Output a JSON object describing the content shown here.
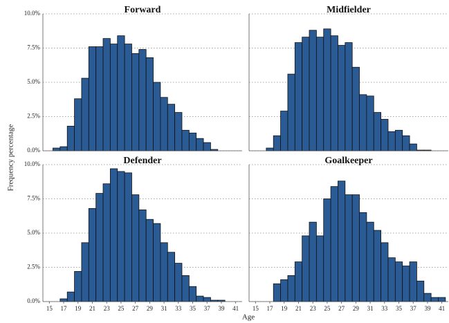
{
  "ylabel": "Frequency percentage",
  "xlabel": "Age",
  "chart_data": [
    {
      "type": "histogram",
      "title": "Forward",
      "color": "#2a5b94",
      "bins": [
        15.5,
        16.5,
        17.5,
        18.5,
        19.5,
        20.5,
        21.5,
        22.5,
        23.5,
        24.5,
        25.5,
        26.5,
        27.5,
        28.5,
        29.5,
        30.5,
        31.5,
        32.5,
        33.5,
        34.5,
        35.5,
        36.5,
        37.5,
        38.5,
        39.5,
        40.5,
        41.5
      ],
      "values": [
        0.2,
        0.3,
        1.8,
        3.8,
        5.3,
        7.6,
        7.6,
        8.2,
        7.8,
        8.4,
        7.8,
        7.1,
        7.4,
        6.8,
        5.0,
        3.9,
        3.4,
        2.8,
        1.5,
        1.3,
        0.9,
        0.6,
        0.1,
        0,
        0,
        0
      ],
      "xlim": [
        14.1,
        41.9
      ],
      "ylim": [
        0,
        10
      ],
      "yticks": [
        {
          "value": 0,
          "label": "0.0%"
        },
        {
          "value": 2.5,
          "label": "2.5%"
        },
        {
          "value": 5,
          "label": "5.0%"
        },
        {
          "value": 7.5,
          "label": "7.5%"
        },
        {
          "value": 10,
          "label": "10.0%"
        }
      ],
      "grid": true
    },
    {
      "type": "histogram",
      "title": "Midfielder",
      "color": "#2a5b94",
      "bins": [
        15.5,
        16.5,
        17.5,
        18.5,
        19.5,
        20.5,
        21.5,
        22.5,
        23.5,
        24.5,
        25.5,
        26.5,
        27.5,
        28.5,
        29.5,
        30.5,
        31.5,
        32.5,
        33.5,
        34.5,
        35.5,
        36.5,
        37.5,
        38.5,
        39.5,
        40.5,
        41.5
      ],
      "values": [
        0,
        0.2,
        1.1,
        2.9,
        5.6,
        7.9,
        8.3,
        8.8,
        8.3,
        8.9,
        8.4,
        7.7,
        7.9,
        6.1,
        4.1,
        4.0,
        2.8,
        2.3,
        1.4,
        1.5,
        1.1,
        0.5,
        0.05,
        0.05,
        0,
        0
      ],
      "xlim": [
        14.1,
        41.9
      ],
      "ylim": [
        0,
        10
      ],
      "yticks": [
        0,
        2.5,
        5,
        7.5,
        10
      ],
      "grid": true
    },
    {
      "type": "histogram",
      "title": "Defender",
      "color": "#2a5b94",
      "bins": [
        15.5,
        16.5,
        17.5,
        18.5,
        19.5,
        20.5,
        21.5,
        22.5,
        23.5,
        24.5,
        25.5,
        26.5,
        27.5,
        28.5,
        29.5,
        30.5,
        31.5,
        32.5,
        33.5,
        34.5,
        35.5,
        36.5,
        37.5,
        38.5,
        39.5,
        40.5,
        41.5
      ],
      "values": [
        0,
        0.2,
        0.7,
        2.2,
        4.3,
        6.8,
        7.9,
        8.6,
        9.7,
        9.5,
        9.4,
        7.8,
        6.7,
        6.0,
        5.7,
        4.3,
        3.6,
        2.8,
        1.9,
        1.1,
        0.4,
        0.3,
        0.1,
        0.1,
        0,
        0
      ],
      "xlim": [
        14.1,
        41.9
      ],
      "ylim": [
        0,
        10
      ],
      "yticks": [
        {
          "value": 0,
          "label": "0.0%"
        },
        {
          "value": 2.5,
          "label": "2.5%"
        },
        {
          "value": 5,
          "label": "5.0%"
        },
        {
          "value": 7.5,
          "label": "7.5%"
        },
        {
          "value": 10,
          "label": "10.0%"
        }
      ],
      "xticks": [
        15,
        17,
        19,
        21,
        23,
        25,
        27,
        29,
        31,
        33,
        35,
        37,
        39,
        41
      ],
      "grid": true
    },
    {
      "type": "histogram",
      "title": "Goalkeeper",
      "color": "#2a5b94",
      "bins": [
        15.5,
        16.5,
        17.5,
        18.5,
        19.5,
        20.5,
        21.5,
        22.5,
        23.5,
        24.5,
        25.5,
        26.5,
        27.5,
        28.5,
        29.5,
        30.5,
        31.5,
        32.5,
        33.5,
        34.5,
        35.5,
        36.5,
        37.5,
        38.5,
        39.5,
        40.5,
        41.5
      ],
      "values": [
        0,
        0,
        1.3,
        1.6,
        1.9,
        2.9,
        4.8,
        5.8,
        4.8,
        7.5,
        8.4,
        8.8,
        7.8,
        7.8,
        6.5,
        5.8,
        5.2,
        4.3,
        3.2,
        2.9,
        2.6,
        2.9,
        1.5,
        0.6,
        0.3,
        0.3
      ],
      "xlim": [
        14.1,
        41.9
      ],
      "ylim": [
        0,
        10
      ],
      "yticks": [
        0,
        2.5,
        5,
        7.5,
        10
      ],
      "xticks": [
        15,
        17,
        19,
        21,
        23,
        25,
        27,
        29,
        31,
        33,
        35,
        37,
        39,
        41
      ],
      "grid": true
    }
  ]
}
